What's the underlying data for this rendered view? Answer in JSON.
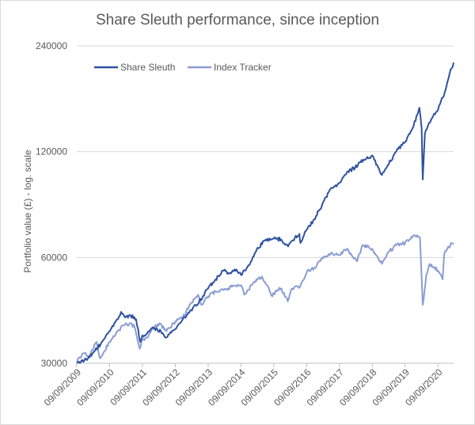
{
  "chart_data": {
    "type": "line",
    "title": "Share Sleuth performance, since inception",
    "ylabel": "Portfolio value (£) - log. scale",
    "xlabel": "",
    "y_scale": "log",
    "ylim": [
      30000,
      240000
    ],
    "y_ticks": [
      {
        "value": 30000,
        "label": "30000"
      },
      {
        "value": 60000,
        "label": "60000"
      },
      {
        "value": 120000,
        "label": "120000"
      },
      {
        "value": 240000,
        "label": "240000"
      }
    ],
    "xlim": [
      "2009-09-09",
      "2021-03-01"
    ],
    "x_ticks": [
      {
        "date": "2009-09-09",
        "label": "09/09/2009"
      },
      {
        "date": "2010-09-09",
        "label": "09/09/2010"
      },
      {
        "date": "2011-09-09",
        "label": "09/09/2011"
      },
      {
        "date": "2012-09-09",
        "label": "09/09/2012"
      },
      {
        "date": "2013-09-09",
        "label": "09/09/2013"
      },
      {
        "date": "2014-09-09",
        "label": "09/09/2014"
      },
      {
        "date": "2015-09-09",
        "label": "09/09/2015"
      },
      {
        "date": "2016-09-09",
        "label": "09/09/2016"
      },
      {
        "date": "2017-09-09",
        "label": "09/09/2017"
      },
      {
        "date": "2018-09-09",
        "label": "09/09/2018"
      },
      {
        "date": "2019-09-09",
        "label": "09/09/2019"
      },
      {
        "date": "2020-09-09",
        "label": "09/09/2020"
      }
    ],
    "grid": "horizontal",
    "legend": {
      "position": "top-left"
    },
    "series": [
      {
        "name": "Share Sleuth",
        "color": "#2f52a0",
        "points": [
          [
            "2009-09-09",
            30000
          ],
          [
            "2009-12-01",
            30500
          ],
          [
            "2010-03-01",
            32000
          ],
          [
            "2010-06-01",
            34000
          ],
          [
            "2010-09-09",
            37000
          ],
          [
            "2010-12-01",
            40000
          ],
          [
            "2011-01-15",
            42000
          ],
          [
            "2011-03-01",
            40500
          ],
          [
            "2011-05-01",
            41000
          ],
          [
            "2011-07-01",
            40000
          ],
          [
            "2011-08-15",
            34500
          ],
          [
            "2011-09-09",
            36000
          ],
          [
            "2011-11-01",
            36500
          ],
          [
            "2012-01-01",
            38000
          ],
          [
            "2012-04-01",
            37000
          ],
          [
            "2012-06-01",
            35500
          ],
          [
            "2012-09-09",
            37500
          ],
          [
            "2012-12-01",
            40000
          ],
          [
            "2013-03-01",
            42500
          ],
          [
            "2013-06-01",
            45000
          ],
          [
            "2013-09-09",
            49000
          ],
          [
            "2013-12-01",
            52000
          ],
          [
            "2014-03-01",
            55000
          ],
          [
            "2014-05-01",
            54000
          ],
          [
            "2014-07-01",
            55500
          ],
          [
            "2014-09-09",
            53500
          ],
          [
            "2014-12-01",
            57000
          ],
          [
            "2015-03-01",
            63000
          ],
          [
            "2015-06-01",
            67000
          ],
          [
            "2015-09-09",
            68000
          ],
          [
            "2015-12-01",
            67500
          ],
          [
            "2016-02-15",
            64500
          ],
          [
            "2016-04-01",
            67000
          ],
          [
            "2016-06-20",
            70000
          ],
          [
            "2016-07-01",
            66000
          ],
          [
            "2016-09-09",
            72000
          ],
          [
            "2016-12-01",
            77000
          ],
          [
            "2017-03-01",
            85000
          ],
          [
            "2017-06-01",
            94000
          ],
          [
            "2017-09-09",
            98000
          ],
          [
            "2017-12-01",
            105000
          ],
          [
            "2018-03-01",
            108000
          ],
          [
            "2018-06-01",
            114000
          ],
          [
            "2018-09-09",
            117000
          ],
          [
            "2018-11-01",
            110000
          ],
          [
            "2018-12-24",
            103000
          ],
          [
            "2019-03-01",
            110000
          ],
          [
            "2019-06-01",
            120000
          ],
          [
            "2019-09-09",
            128000
          ],
          [
            "2019-12-01",
            140000
          ],
          [
            "2020-02-15",
            160000
          ],
          [
            "2020-03-10",
            140000
          ],
          [
            "2020-03-23",
            100000
          ],
          [
            "2020-04-15",
            135000
          ],
          [
            "2020-06-01",
            145000
          ],
          [
            "2020-09-09",
            158000
          ],
          [
            "2020-12-01",
            180000
          ],
          [
            "2021-01-15",
            200000
          ],
          [
            "2021-03-01",
            215000
          ]
        ]
      },
      {
        "name": "Index Tracker",
        "color": "#8a9ed2",
        "points": [
          [
            "2009-09-09",
            30500
          ],
          [
            "2009-12-01",
            32000
          ],
          [
            "2010-02-01",
            31500
          ],
          [
            "2010-04-15",
            34500
          ],
          [
            "2010-05-25",
            31000
          ],
          [
            "2010-09-09",
            34500
          ],
          [
            "2010-12-01",
            37000
          ],
          [
            "2011-02-15",
            38500
          ],
          [
            "2011-05-01",
            39000
          ],
          [
            "2011-06-15",
            38000
          ],
          [
            "2011-08-10",
            33000
          ],
          [
            "2011-09-09",
            35000
          ],
          [
            "2011-11-01",
            35500
          ],
          [
            "2012-01-01",
            37500
          ],
          [
            "2012-03-15",
            39000
          ],
          [
            "2012-06-01",
            37000
          ],
          [
            "2012-09-09",
            39500
          ],
          [
            "2012-12-01",
            40500
          ],
          [
            "2013-03-01",
            44500
          ],
          [
            "2013-05-20",
            47000
          ],
          [
            "2013-06-25",
            44000
          ],
          [
            "2013-09-09",
            46500
          ],
          [
            "2013-12-01",
            48000
          ],
          [
            "2014-03-01",
            48500
          ],
          [
            "2014-06-01",
            49500
          ],
          [
            "2014-09-09",
            50000
          ],
          [
            "2014-10-15",
            47000
          ],
          [
            "2014-12-01",
            48500
          ],
          [
            "2015-03-01",
            52000
          ],
          [
            "2015-05-01",
            53000
          ],
          [
            "2015-08-25",
            46500
          ],
          [
            "2015-09-09",
            47500
          ],
          [
            "2015-12-01",
            49000
          ],
          [
            "2016-02-11",
            45000
          ],
          [
            "2016-04-01",
            49000
          ],
          [
            "2016-06-27",
            49500
          ],
          [
            "2016-09-09",
            54500
          ],
          [
            "2016-12-01",
            56000
          ],
          [
            "2017-03-01",
            59500
          ],
          [
            "2017-06-01",
            61500
          ],
          [
            "2017-09-09",
            61000
          ],
          [
            "2017-12-01",
            63500
          ],
          [
            "2018-03-25",
            58500
          ],
          [
            "2018-05-20",
            65000
          ],
          [
            "2018-09-09",
            63500
          ],
          [
            "2018-12-24",
            57500
          ],
          [
            "2019-03-01",
            62000
          ],
          [
            "2019-06-01",
            65000
          ],
          [
            "2019-09-09",
            66000
          ],
          [
            "2019-12-20",
            69500
          ],
          [
            "2020-02-20",
            68500
          ],
          [
            "2020-03-23",
            44000
          ],
          [
            "2020-05-01",
            53500
          ],
          [
            "2020-06-08",
            57500
          ],
          [
            "2020-09-09",
            55000
          ],
          [
            "2020-10-30",
            52000
          ],
          [
            "2020-11-15",
            61000
          ],
          [
            "2021-01-01",
            64500
          ],
          [
            "2021-03-01",
            66000
          ]
        ]
      }
    ]
  }
}
